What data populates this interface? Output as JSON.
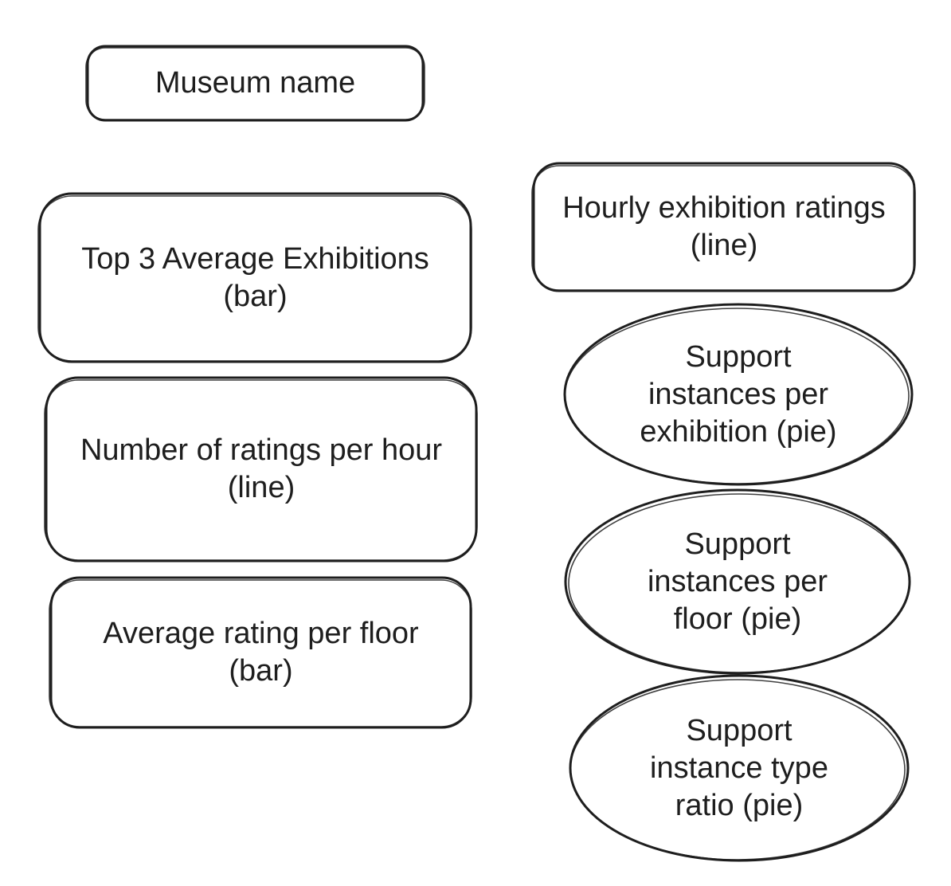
{
  "title_box": {
    "line1": "Museum name"
  },
  "left_boxes": [
    {
      "line1": "Top 3 Average Exhibitions",
      "line2": "(bar)"
    },
    {
      "line1": "Number of ratings per hour",
      "line2": "(line)"
    },
    {
      "line1": "Average rating per floor",
      "line2": "(bar)"
    }
  ],
  "right_box": {
    "line1": "Hourly exhibition ratings",
    "line2": "(line)"
  },
  "ellipses": [
    {
      "line1": "Support",
      "line2": "instances per",
      "line3": "exhibition (pie)"
    },
    {
      "line1": "Support",
      "line2": "instances per",
      "line3": "floor (pie)"
    },
    {
      "line1": "Support",
      "line2": "instance type",
      "line3": "ratio (pie)"
    }
  ],
  "colors": {
    "stroke": "#1e1e1e",
    "background": "#ffffff"
  }
}
